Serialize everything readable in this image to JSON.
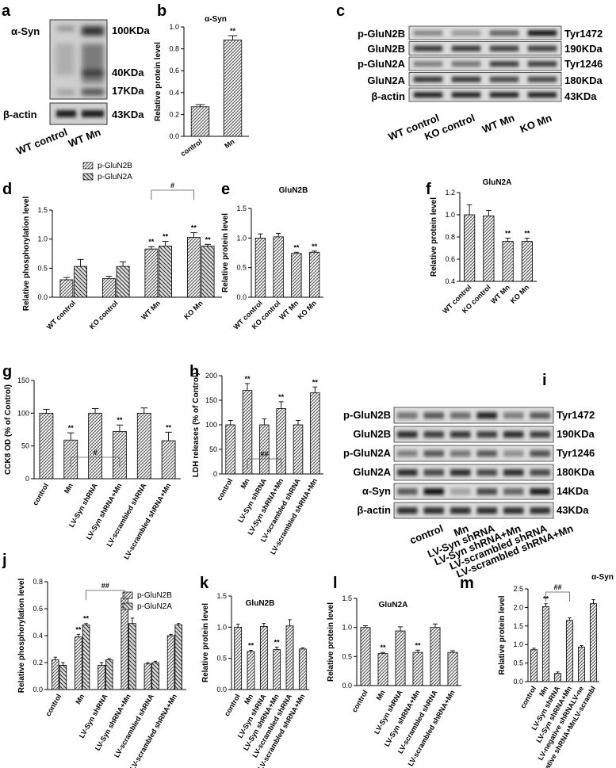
{
  "blot_a": {
    "panel_label": "a",
    "rows": [
      "α-Syn",
      "β-actin"
    ],
    "sizes": [
      "100KDa",
      "40KDa",
      "17KDa",
      "43KDa"
    ],
    "lanes": [
      "WT control",
      "WT Mn"
    ]
  },
  "blot_c": {
    "panel_label": "c",
    "rows": [
      "p-GluN2B",
      "GluN2B",
      "p-GluN2A",
      "GluN2A",
      "β-actin"
    ],
    "sizes": [
      "Tyr1472",
      "190KDa",
      "Tyr1246",
      "180KDa",
      "43KDa"
    ],
    "lanes": [
      "WT control",
      "KO control",
      "WT Mn",
      "KO Mn"
    ]
  },
  "blot_i": {
    "panel_label": "i",
    "rows": [
      "p-GluN2B",
      "GluN2B",
      "p-GluN2A",
      "GluN2A",
      "α-Syn",
      "β-actin"
    ],
    "sizes": [
      "Tyr1472",
      "190KDa",
      "Tyr1246",
      "180KDa",
      "14KDa",
      "43KDa"
    ],
    "lanes": [
      "control",
      "Mn",
      "LV-Syn shRNA",
      "LV-Syn shRNA+Mn",
      "LV-scrambled shRNA",
      "LV-scrambled shRNA+Mn"
    ]
  },
  "chart_data": [
    {
      "id": "b",
      "panel_label": "b",
      "type": "bar",
      "title": "α-Syn",
      "xlabel": "",
      "ylabel": "Relative protein level",
      "ylim": [
        0,
        1.0
      ],
      "yticks": [
        "0.0",
        "0.2",
        "0.4",
        "0.6",
        "0.8",
        "1.0"
      ],
      "categories": [
        "control",
        "Mn"
      ],
      "values": [
        0.27,
        0.88
      ],
      "errors": [
        0.02,
        0.04
      ],
      "annotations": [
        "",
        "**"
      ]
    },
    {
      "id": "d",
      "panel_label": "d",
      "type": "bar",
      "title": "",
      "xlabel": "",
      "ylabel": "Relative phosphorylation level",
      "ylim": [
        0,
        1.5
      ],
      "yticks": [
        "0.0",
        "0.5",
        "1.0",
        "1.5"
      ],
      "categories": [
        "WT control",
        "KO control",
        "WT Mn",
        "KO Mn"
      ],
      "legend_position": "top-left",
      "series": [
        {
          "name": "p-GluN2B",
          "values": [
            0.3,
            0.32,
            0.83,
            1.03
          ],
          "errors": [
            0.04,
            0.04,
            0.04,
            0.08
          ],
          "annotations": [
            "",
            "",
            "**",
            "**"
          ]
        },
        {
          "name": "p-GluN2A",
          "values": [
            0.53,
            0.53,
            0.88,
            0.88
          ],
          "errors": [
            0.12,
            0.08,
            0.08,
            0.03
          ],
          "annotations": [
            "",
            "",
            "**",
            "**"
          ]
        }
      ],
      "brackets": [
        {
          "label": "#"
        }
      ]
    },
    {
      "id": "e",
      "panel_label": "e",
      "type": "bar",
      "title": "GluN2B",
      "xlabel": "",
      "ylabel": "Relative protein level",
      "ylim": [
        0,
        1.5
      ],
      "yticks": [
        "0.0",
        "0.5",
        "1.0",
        "1.5"
      ],
      "categories": [
        "WT control",
        "KO control",
        "WT Mn",
        "KO Mn"
      ],
      "values": [
        1.0,
        1.02,
        0.74,
        0.76
      ],
      "errors": [
        0.07,
        0.06,
        0.02,
        0.02
      ],
      "annotations": [
        "",
        "",
        "**",
        "**"
      ]
    },
    {
      "id": "f",
      "panel_label": "f",
      "type": "bar",
      "title": "GluN2A",
      "xlabel": "",
      "ylabel": "Relative protein level",
      "ylim": [
        0.4,
        1.2
      ],
      "yticks": [
        "0.4",
        "0.6",
        "0.8",
        "1.0",
        "1.2"
      ],
      "categories": [
        "WT control",
        "KO control",
        "WT Mn",
        "KO Mn"
      ],
      "values": [
        1.0,
        0.99,
        0.76,
        0.76
      ],
      "errors": [
        0.09,
        0.05,
        0.03,
        0.03
      ],
      "annotations": [
        "",
        "",
        "**",
        "**"
      ]
    },
    {
      "id": "g",
      "panel_label": "g",
      "type": "bar",
      "title": "",
      "xlabel": "",
      "ylabel": "CCK8  OD (% of Control)",
      "ylim": [
        0,
        150
      ],
      "yticks": [
        "0",
        "50",
        "100",
        "150"
      ],
      "categories": [
        "control",
        "Mn",
        "LV-Syn shRNA",
        "LV-Syn shRNA+Mn",
        "LV-scrambled shRNA",
        "LV-scrambled shRNA+Mn"
      ],
      "values": [
        100,
        59,
        100,
        72,
        100,
        58
      ],
      "errors": [
        6,
        11,
        7,
        10,
        8,
        13
      ],
      "annotations": [
        "",
        "**",
        "",
        "**",
        "",
        "**"
      ],
      "brackets": [
        {
          "label": "#"
        }
      ]
    },
    {
      "id": "h",
      "panel_label": "h",
      "type": "bar",
      "title": "",
      "xlabel": "",
      "ylabel": "LDH releases (% of Control)",
      "ylim": [
        0,
        200
      ],
      "yticks": [
        "0",
        "50",
        "100",
        "150",
        "200"
      ],
      "categories": [
        "control",
        "Mn",
        "LV-Syn shRNA",
        "LV-Syn shRNA+Mn",
        "LV-scrambled shRNA",
        "LV-scrambled shRNA+Mn"
      ],
      "values": [
        100,
        170,
        100,
        133,
        100,
        165
      ],
      "errors": [
        9,
        14,
        12,
        14,
        9,
        12
      ],
      "annotations": [
        "",
        "**",
        "",
        "**",
        "",
        "**"
      ],
      "brackets": [
        {
          "label": "##"
        }
      ]
    },
    {
      "id": "j",
      "panel_label": "j",
      "type": "bar",
      "title": "",
      "xlabel": "",
      "ylabel": "Relative phosphorylation level",
      "ylim": [
        0,
        0.8
      ],
      "yticks": [
        "0.0",
        "0.2",
        "0.4",
        "0.6",
        "0.8"
      ],
      "categories": [
        "control",
        "Mn",
        "LV-Syn shRNA",
        "LV-Syn shRNA+Mn",
        "LV-scrambled shRNA",
        "LV-scrambled shRNA+Mn"
      ],
      "legend_position": "top-right",
      "series": [
        {
          "name": "p-GluN2B",
          "values": [
            0.22,
            0.39,
            0.18,
            0.68,
            0.19,
            0.4
          ],
          "errors": [
            0.02,
            0.02,
            0.02,
            0.03,
            0.01,
            0.01
          ],
          "annotations": [
            "",
            "**",
            "",
            "",
            "",
            ""
          ]
        },
        {
          "name": "p-GluN2A",
          "values": [
            0.18,
            0.48,
            0.22,
            0.49,
            0.2,
            0.48
          ],
          "errors": [
            0.02,
            0.01,
            0.01,
            0.04,
            0.01,
            0.01
          ],
          "annotations": [
            "",
            "**",
            "",
            "",
            "",
            ""
          ]
        }
      ],
      "brackets": [
        {
          "label": "##"
        }
      ]
    },
    {
      "id": "k",
      "panel_label": "k",
      "type": "bar",
      "title": "GluN2B",
      "xlabel": "",
      "ylabel": "Relative protein level",
      "ylim": [
        0,
        1.5
      ],
      "yticks": [
        "0.0",
        "0.5",
        "1.0",
        "1.5"
      ],
      "categories": [
        "control",
        "Mn",
        "LV-Syn shRNA",
        "LV-Syn shRNA+Mn",
        "LV-scrambled shRNA",
        "LV-scrambled shRNA+Mn"
      ],
      "values": [
        1.0,
        0.61,
        1.01,
        0.64,
        1.02,
        0.65
      ],
      "errors": [
        0.05,
        0.02,
        0.05,
        0.04,
        0.1,
        0.02
      ],
      "annotations": [
        "",
        "**",
        "",
        "**",
        "",
        ""
      ]
    },
    {
      "id": "l",
      "panel_label": "l",
      "type": "bar",
      "title": "GluN2A",
      "xlabel": "",
      "ylabel": "Relative protein level",
      "ylim": [
        0,
        1.5
      ],
      "yticks": [
        "0.0",
        "0.5",
        "1.0",
        "1.5"
      ],
      "categories": [
        "control",
        "Mn",
        "LV-Syn shRNA",
        "LV-Syn shRNA+Mn",
        "LV-scrambled shRNA",
        "LV-scrambled shRNA+Mn"
      ],
      "values": [
        1.0,
        0.55,
        0.94,
        0.57,
        1.0,
        0.57
      ],
      "errors": [
        0.03,
        0.02,
        0.07,
        0.04,
        0.06,
        0.03
      ],
      "annotations": [
        "",
        "**",
        "",
        "**",
        "",
        ""
      ]
    },
    {
      "id": "m",
      "panel_label": "m",
      "type": "bar",
      "title": "α-Syn",
      "xlabel": "",
      "ylabel": "Relative protein level",
      "ylim": [
        0,
        2.5
      ],
      "yticks": [
        "0.0",
        "0.5",
        "1.0",
        "1.5",
        "2.0",
        "2.5"
      ],
      "categories": [
        "control",
        "Mn",
        "LV-Syn shRNA",
        "LV-Syn shRNA+Mn",
        "LV-negative shRNALV-ne",
        "gative shRNA+MnLV-scrambl"
      ],
      "values": [
        0.86,
        2.02,
        0.22,
        1.65,
        0.93,
        2.1
      ],
      "errors": [
        0.04,
        0.08,
        0.04,
        0.07,
        0.04,
        0.11
      ],
      "annotations": [
        "",
        "**",
        "",
        "",
        "",
        ""
      ],
      "brackets": [
        {
          "label": "##"
        }
      ]
    }
  ]
}
